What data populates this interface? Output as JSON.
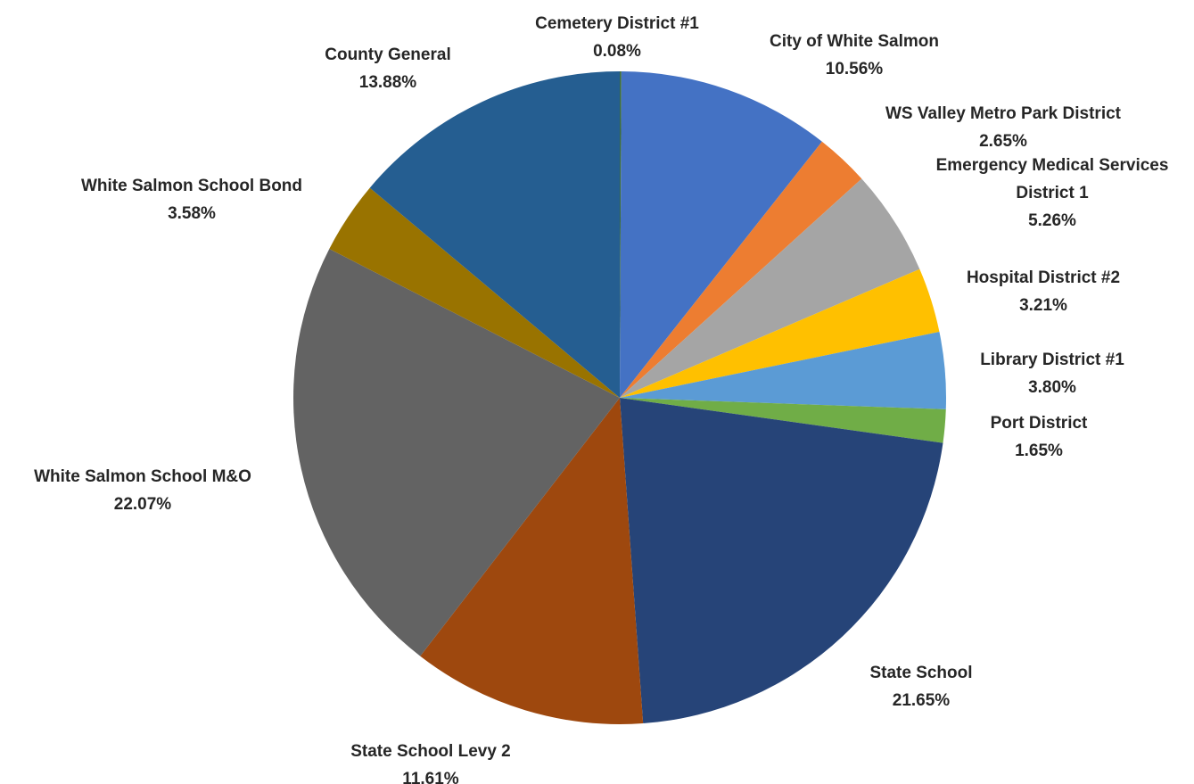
{
  "chart_data": {
    "type": "pie",
    "title": "",
    "slices": [
      {
        "label": "Cemetery District #1",
        "value": 0.08,
        "value_label": "0.08%",
        "color": "#3F6F3A"
      },
      {
        "label": "City of White Salmon",
        "value": 10.56,
        "value_label": "10.56%",
        "color": "#4472C4"
      },
      {
        "label": "WS Valley Metro Park District",
        "value": 2.65,
        "value_label": "2.65%",
        "color": "#ED7D31"
      },
      {
        "label": "Emergency Medical Services District 1",
        "label_lines": [
          "Emergency Medical Services",
          "District 1"
        ],
        "value": 5.26,
        "value_label": "5.26%",
        "color": "#A5A5A5"
      },
      {
        "label": "Hospital District #2",
        "value": 3.21,
        "value_label": "3.21%",
        "color": "#FFC000"
      },
      {
        "label": "Library District #1",
        "value": 3.8,
        "value_label": "3.80%",
        "color": "#5B9BD5"
      },
      {
        "label": "Port District",
        "value": 1.65,
        "value_label": "1.65%",
        "color": "#70AD47"
      },
      {
        "label": "State School",
        "value": 21.65,
        "value_label": "21.65%",
        "color": "#264478"
      },
      {
        "label": "State School Levy 2",
        "value": 11.61,
        "value_label": "11.61%",
        "color": "#9E480E"
      },
      {
        "label": "White Salmon School M&O",
        "value": 22.07,
        "value_label": "22.07%",
        "color": "#636363"
      },
      {
        "label": "White Salmon School Bond",
        "value": 3.58,
        "value_label": "3.58%",
        "color": "#997300"
      },
      {
        "label": "County General",
        "value": 13.88,
        "value_label": "13.88%",
        "color": "#255E91"
      }
    ],
    "start_angle": "12 o'clock",
    "direction": "clockwise",
    "legend": "none",
    "data_labels": "outside"
  }
}
